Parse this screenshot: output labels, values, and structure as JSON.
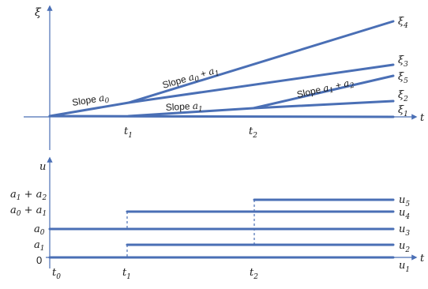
{
  "top_plot": {
    "y_axis_label": "ξ",
    "x_axis_label": "t",
    "t1_label": {
      "main": "t",
      "sub": "1"
    },
    "t2_label": {
      "main": "t",
      "sub": "2"
    },
    "series_labels": [
      {
        "main": "ξ",
        "sub": "4"
      },
      {
        "main": "ξ",
        "sub": "3"
      },
      {
        "main": "ξ",
        "sub": "5"
      },
      {
        "main": "ξ",
        "sub": "2"
      },
      {
        "main": "ξ",
        "sub": "1"
      }
    ],
    "slopes": {
      "a0": {
        "prefix": "Slope ",
        "var": "a",
        "sub": "0"
      },
      "a1": {
        "prefix": "Slope ",
        "var": "a",
        "sub": "1"
      },
      "a0_plus_a1": {
        "prefix": "Slope ",
        "expr": [
          "a",
          "0",
          " + ",
          "a",
          "1"
        ]
      },
      "a1_plus_a2": {
        "prefix": "Slope ",
        "expr": [
          "a",
          "1",
          " + ",
          "a",
          "2"
        ]
      }
    }
  },
  "bottom_plot": {
    "y_axis_label": "u",
    "x_axis_label": "t",
    "left_labels": [
      {
        "expr": [
          "a",
          "1",
          " + ",
          "a",
          "2"
        ]
      },
      {
        "expr": [
          "a",
          "0",
          " + ",
          "a",
          "1"
        ]
      },
      {
        "expr": [
          "a",
          "0"
        ]
      },
      {
        "expr": [
          "a",
          "1"
        ]
      },
      {
        "text": "0"
      }
    ],
    "t_labels": [
      {
        "main": "t",
        "sub": "0"
      },
      {
        "main": "t",
        "sub": "1"
      },
      {
        "main": "t",
        "sub": "2"
      }
    ],
    "series_labels": [
      {
        "main": "u",
        "sub": "5"
      },
      {
        "main": "u",
        "sub": "4"
      },
      {
        "main": "u",
        "sub": "3"
      },
      {
        "main": "u",
        "sub": "2"
      },
      {
        "main": "u",
        "sub": "1"
      }
    ]
  },
  "colors": {
    "line": "#4a6fb5",
    "text": "#1a1a1a"
  }
}
